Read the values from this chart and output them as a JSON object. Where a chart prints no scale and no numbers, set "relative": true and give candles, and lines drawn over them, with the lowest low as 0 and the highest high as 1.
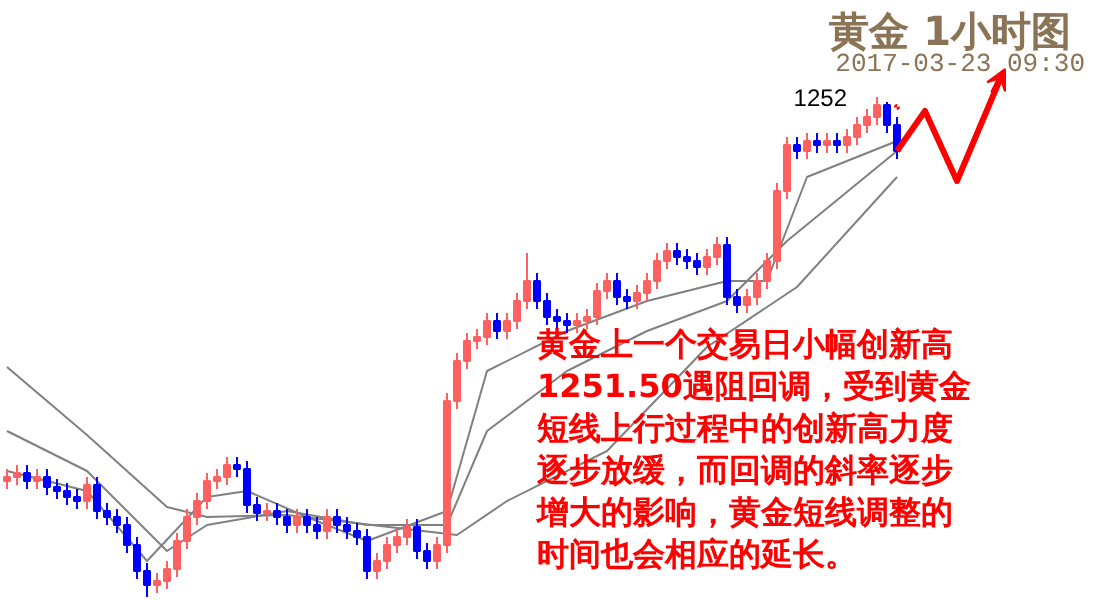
{
  "chart_data": {
    "type": "candlestick",
    "relative": true,
    "title": "黄金  1小时图",
    "subtitle": "2017-03-23 09:30",
    "annotations": [
      "1252",
      "黄金上一个交易日小幅创新高1251.50遇阻回调，受到黄金短线上行过程中的创新高力度逐步放缓，而回调的斜率逐步增大的影响，黄金短线调整的时间也会相应的延长。"
    ],
    "categories": [
      null,
      null,
      null,
      null,
      null,
      null,
      null,
      null,
      null,
      null,
      null,
      null,
      null,
      null,
      null,
      null,
      null,
      null,
      null,
      null,
      null,
      null,
      null,
      null,
      null,
      null,
      null,
      null,
      null,
      null,
      null,
      null,
      null,
      null,
      null,
      null,
      null,
      null,
      null,
      null,
      null,
      null,
      null,
      null,
      null,
      null,
      null,
      null,
      null,
      null,
      null,
      null,
      null,
      null,
      null,
      null,
      null,
      null,
      null,
      null,
      null,
      null,
      null,
      null,
      null,
      null,
      null,
      null,
      null,
      null,
      null,
      null,
      null,
      null,
      null,
      null,
      null,
      null,
      null,
      null,
      null,
      null,
      null,
      null,
      null,
      null,
      null,
      null,
      null,
      null
    ],
    "ohlc": [
      [
        0.232,
        0.256,
        0.216,
        0.24
      ],
      [
        0.24,
        0.264,
        0.224,
        0.248
      ],
      [
        0.248,
        0.264,
        0.216,
        0.232
      ],
      [
        0.232,
        0.256,
        0.216,
        0.24
      ],
      [
        0.24,
        0.256,
        0.204,
        0.22
      ],
      [
        0.22,
        0.236,
        0.196,
        0.212
      ],
      [
        0.212,
        0.228,
        0.184,
        0.2
      ],
      [
        0.2,
        0.216,
        0.176,
        0.192
      ],
      [
        0.192,
        0.24,
        0.176,
        0.224
      ],
      [
        0.224,
        0.24,
        0.156,
        0.172
      ],
      [
        0.172,
        0.188,
        0.144,
        0.16
      ],
      [
        0.16,
        0.176,
        0.128,
        0.144
      ],
      [
        0.144,
        0.16,
        0.088,
        0.104
      ],
      [
        0.104,
        0.12,
        0.036,
        0.052
      ],
      [
        0.052,
        0.068,
        0,
        0.024
      ],
      [
        0.024,
        0.048,
        0.008,
        0.032
      ],
      [
        0.032,
        0.072,
        0.016,
        0.056
      ],
      [
        0.056,
        0.128,
        0.04,
        0.112
      ],
      [
        0.112,
        0.176,
        0.096,
        0.16
      ],
      [
        0.16,
        0.208,
        0.144,
        0.192
      ],
      [
        0.192,
        0.248,
        0.176,
        0.232
      ],
      [
        0.232,
        0.256,
        0.216,
        0.24
      ],
      [
        0.24,
        0.28,
        0.224,
        0.264
      ],
      [
        0.264,
        0.28,
        0.24,
        0.256
      ],
      [
        0.256,
        0.272,
        0.168,
        0.184
      ],
      [
        0.184,
        0.2,
        0.152,
        0.168
      ],
      [
        0.168,
        0.188,
        0.152,
        0.172
      ],
      [
        0.172,
        0.188,
        0.144,
        0.16
      ],
      [
        0.16,
        0.176,
        0.128,
        0.144
      ],
      [
        0.144,
        0.176,
        0.128,
        0.16
      ],
      [
        0.16,
        0.176,
        0.128,
        0.144
      ],
      [
        0.144,
        0.16,
        0.116,
        0.132
      ],
      [
        0.132,
        0.176,
        0.116,
        0.16
      ],
      [
        0.16,
        0.176,
        0.128,
        0.144
      ],
      [
        0.144,
        0.16,
        0.116,
        0.132
      ],
      [
        0.132,
        0.148,
        0.104,
        0.12
      ],
      [
        0.12,
        0.136,
        0.036,
        0.052
      ],
      [
        0.052,
        0.088,
        0.036,
        0.072
      ],
      [
        0.072,
        0.12,
        0.056,
        0.104
      ],
      [
        0.104,
        0.136,
        0.088,
        0.12
      ],
      [
        0.12,
        0.156,
        0.104,
        0.14
      ],
      [
        0.14,
        0.156,
        0.076,
        0.092
      ],
      [
        0.092,
        0.108,
        0.056,
        0.072
      ],
      [
        0.072,
        0.12,
        0.056,
        0.104
      ],
      [
        0.104,
        0.408,
        0.088,
        0.392
      ],
      [
        0.392,
        0.488,
        0.376,
        0.472
      ],
      [
        0.472,
        0.528,
        0.456,
        0.512
      ],
      [
        0.512,
        0.536,
        0.496,
        0.52
      ],
      [
        0.52,
        0.568,
        0.504,
        0.552
      ],
      [
        0.552,
        0.568,
        0.516,
        0.532
      ],
      [
        0.532,
        0.568,
        0.516,
        0.552
      ],
      [
        0.552,
        0.608,
        0.536,
        0.592
      ],
      [
        0.592,
        0.688,
        0.576,
        0.632
      ],
      [
        0.632,
        0.648,
        0.576,
        0.592
      ],
      [
        0.592,
        0.608,
        0.544,
        0.56
      ],
      [
        0.56,
        0.576,
        0.536,
        0.552
      ],
      [
        0.552,
        0.568,
        0.528,
        0.544
      ],
      [
        0.544,
        0.568,
        0.528,
        0.552
      ],
      [
        0.552,
        0.576,
        0.536,
        0.56
      ],
      [
        0.56,
        0.628,
        0.544,
        0.612
      ],
      [
        0.612,
        0.648,
        0.596,
        0.632
      ],
      [
        0.632,
        0.648,
        0.584,
        0.6
      ],
      [
        0.6,
        0.616,
        0.576,
        0.592
      ],
      [
        0.592,
        0.624,
        0.576,
        0.608
      ],
      [
        0.608,
        0.648,
        0.592,
        0.632
      ],
      [
        0.632,
        0.688,
        0.616,
        0.672
      ],
      [
        0.672,
        0.708,
        0.656,
        0.692
      ],
      [
        0.692,
        0.708,
        0.664,
        0.68
      ],
      [
        0.68,
        0.696,
        0.656,
        0.672
      ],
      [
        0.672,
        0.688,
        0.644,
        0.66
      ],
      [
        0.66,
        0.696,
        0.644,
        0.68
      ],
      [
        0.68,
        0.72,
        0.664,
        0.704
      ],
      [
        0.704,
        0.72,
        0.584,
        0.6
      ],
      [
        0.6,
        0.616,
        0.568,
        0.584
      ],
      [
        0.584,
        0.616,
        0.568,
        0.6
      ],
      [
        0.6,
        0.648,
        0.584,
        0.632
      ],
      [
        0.632,
        0.688,
        0.616,
        0.672
      ],
      [
        0.672,
        0.828,
        0.656,
        0.812
      ],
      [
        0.812,
        0.92,
        0.796,
        0.904
      ],
      [
        0.904,
        0.92,
        0.876,
        0.892
      ],
      [
        0.892,
        0.928,
        0.876,
        0.912
      ],
      [
        0.912,
        0.928,
        0.888,
        0.904
      ],
      [
        0.904,
        0.928,
        0.888,
        0.912
      ],
      [
        0.912,
        0.928,
        0.888,
        0.904
      ],
      [
        0.904,
        0.936,
        0.888,
        0.92
      ],
      [
        0.92,
        0.96,
        0.904,
        0.944
      ],
      [
        0.944,
        0.976,
        0.928,
        0.96
      ],
      [
        0.96,
        1,
        0.944,
        0.984
      ],
      [
        0.984,
        0.99,
        0.928,
        0.944
      ],
      [
        0.944,
        0.96,
        0.876,
        0.892
      ]
    ],
    "colors": [
      "#ff6060",
      "#ff6060",
      "#0000ff",
      "#ff6060",
      "#0000ff",
      "#0000ff",
      "#0000ff",
      "#0000ff",
      "#ff6060",
      "#0000ff",
      "#0000ff",
      "#0000ff",
      "#0000ff",
      "#0000ff",
      "#0000ff",
      "#ff6060",
      "#ff6060",
      "#ff6060",
      "#ff6060",
      "#ff6060",
      "#ff6060",
      "#ff6060",
      "#ff6060",
      "#0000ff",
      "#0000ff",
      "#0000ff",
      "#ff6060",
      "#0000ff",
      "#0000ff",
      "#ff6060",
      "#0000ff",
      "#0000ff",
      "#ff6060",
      "#0000ff",
      "#0000ff",
      "#0000ff",
      "#0000ff",
      "#ff6060",
      "#ff6060",
      "#ff6060",
      "#ff6060",
      "#0000ff",
      "#0000ff",
      "#ff6060",
      "#ff6060",
      "#ff6060",
      "#ff6060",
      "#ff6060",
      "#ff6060",
      "#0000ff",
      "#ff6060",
      "#ff6060",
      "#ff6060",
      "#0000ff",
      "#0000ff",
      "#0000ff",
      "#0000ff",
      "#ff6060",
      "#ff6060",
      "#ff6060",
      "#ff6060",
      "#0000ff",
      "#0000ff",
      "#ff6060",
      "#ff6060",
      "#ff6060",
      "#ff6060",
      "#0000ff",
      "#0000ff",
      "#0000ff",
      "#ff6060",
      "#ff6060",
      "#0000ff",
      "#0000ff",
      "#ff6060",
      "#ff6060",
      "#ff6060",
      "#ff6060",
      "#ff6060",
      "#0000ff",
      "#ff6060",
      "#0000ff",
      "#ff6060",
      "#0000ff",
      "#ff6060",
      "#ff6060",
      "#ff6060",
      "#ff6060",
      "#0000ff",
      "#0000ff"
    ],
    "series": [
      {
        "type": "line",
        "color": "#808080",
        "values": [
          0.46,
          null,
          null,
          null,
          null,
          null,
          null,
          null,
          0.324,
          null,
          null,
          null,
          null,
          null,
          null,
          null,
          0.18,
          null,
          null,
          null,
          0.16,
          null,
          null,
          null,
          null,
          null,
          null,
          null,
          0.164,
          null,
          null,
          null,
          null,
          null,
          null,
          null,
          null,
          null,
          null,
          null,
          null,
          null,
          null,
          null,
          null,
          0.124,
          null,
          null,
          null,
          null,
          0.192,
          null,
          null,
          null,
          null,
          null,
          null,
          null,
          null,
          null,
          0.292,
          null,
          null,
          null,
          null,
          null,
          null,
          null,
          null,
          null,
          0.5,
          null,
          null,
          null,
          null,
          null,
          null,
          null,
          null,
          0.62,
          null,
          null,
          null,
          null,
          null,
          null,
          null,
          null,
          null,
          0.84
        ]
      },
      {
        "type": "line",
        "color": "#808080",
        "values": [
          0.332,
          null,
          null,
          null,
          null,
          null,
          null,
          null,
          0.252,
          null,
          null,
          null,
          null,
          null,
          null,
          null,
          0.092,
          null,
          null,
          null,
          0.144,
          null,
          null,
          null,
          null,
          null,
          null,
          null,
          0.172,
          null,
          null,
          null,
          null,
          null,
          null,
          null,
          0.144,
          null,
          null,
          null,
          null,
          null,
          null,
          null,
          0.144,
          null,
          null,
          null,
          0.332,
          null,
          null,
          null,
          null,
          null,
          null,
          null,
          0.452,
          null,
          null,
          null,
          null,
          null,
          null,
          null,
          0.532,
          null,
          null,
          null,
          null,
          null,
          null,
          null,
          0.592,
          null,
          null,
          null,
          null,
          null,
          0.712,
          null,
          null,
          null,
          null,
          null,
          null,
          null,
          null,
          null,
          null,
          0.892
        ]
      },
      {
        "type": "line",
        "color": "#808080",
        "values": [
          0.252,
          null,
          null,
          null,
          null,
          null,
          null,
          null,
          0.212,
          null,
          null,
          null,
          null,
          null,
          0.072,
          null,
          null,
          null,
          null,
          null,
          0.2,
          null,
          null,
          null,
          0.212,
          null,
          null,
          null,
          null,
          null,
          0.16,
          null,
          null,
          null,
          null,
          null,
          0.112,
          null,
          null,
          null,
          null,
          null,
          null,
          null,
          0.172,
          null,
          null,
          null,
          0.452,
          null,
          null,
          null,
          null,
          null,
          null,
          null,
          0.532,
          null,
          null,
          null,
          null,
          null,
          null,
          null,
          0.592,
          null,
          null,
          null,
          null,
          null,
          null,
          null,
          0.632,
          null,
          null,
          null,
          0.632,
          null,
          null,
          null,
          0.84,
          null,
          null,
          null,
          null,
          null,
          null,
          null,
          null,
          0.912
        ]
      }
    ],
    "grid": false
  }
}
